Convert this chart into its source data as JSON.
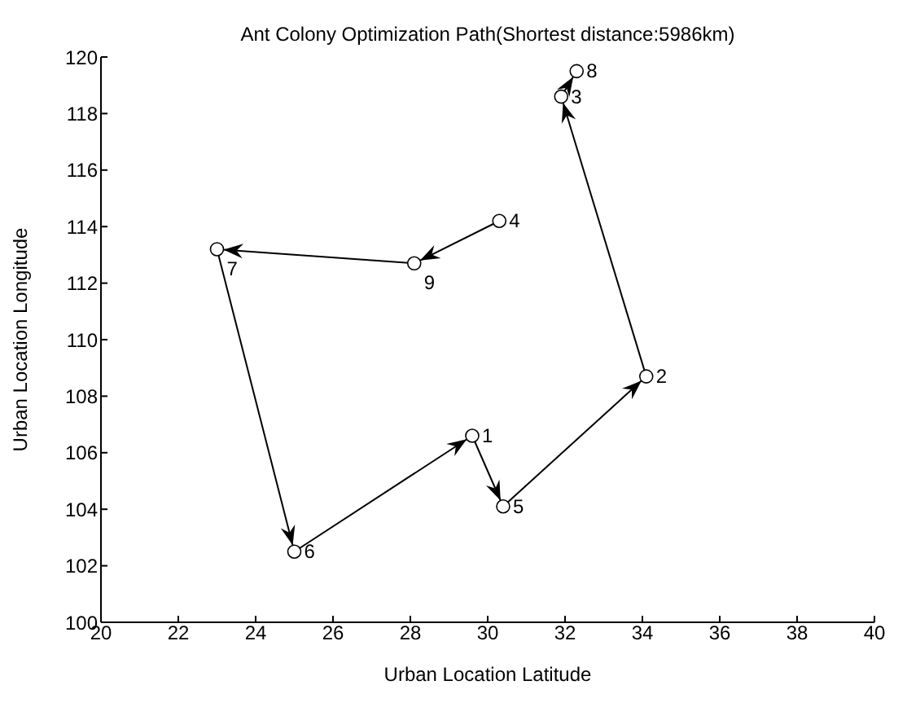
{
  "chart_data": {
    "type": "line",
    "title": "Ant Colony Optimization Path(Shortest distance:5986km)",
    "xlabel": "Urban Location Latitude",
    "ylabel": "Urban Location Longitude",
    "x": [
      30.3,
      28.1,
      23.0,
      25.0,
      29.6,
      30.4,
      34.1,
      31.9,
      32.3
    ],
    "series": [
      {
        "color": "#000000",
        "values": [
          114.2,
          112.7,
          113.2,
          102.5,
          106.6,
          104.1,
          108.7,
          118.6,
          119.5
        ]
      }
    ],
    "xlim": [
      20,
      40
    ],
    "xticks": [
      20,
      22,
      24,
      26,
      28,
      30,
      32,
      34,
      36,
      38,
      40
    ],
    "ylim": [
      100,
      120
    ],
    "yticks": [
      100,
      102,
      104,
      106,
      108,
      110,
      112,
      114,
      116,
      118,
      120
    ],
    "marker": "circle",
    "line_style": "solid",
    "grid": false,
    "annotations": [
      {
        "text": "4",
        "x": 30.3,
        "y": 114.2
      },
      {
        "text": "9",
        "x": 28.1,
        "y": 112.7
      },
      {
        "text": "7",
        "x": 23.0,
        "y": 113.2
      },
      {
        "text": "6",
        "x": 25.0,
        "y": 102.5
      },
      {
        "text": "1",
        "x": 29.6,
        "y": 106.6
      },
      {
        "text": "5",
        "x": 30.4,
        "y": 104.1
      },
      {
        "text": "2",
        "x": 34.1,
        "y": 108.7
      },
      {
        "text": "3",
        "x": 31.9,
        "y": 118.6
      },
      {
        "text": "8",
        "x": 32.3,
        "y": 119.5
      }
    ]
  }
}
